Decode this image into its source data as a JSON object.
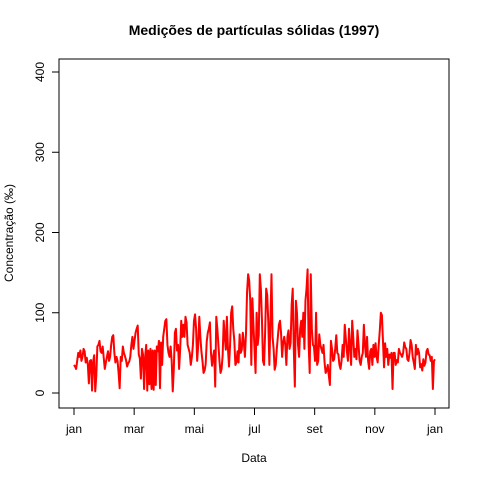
{
  "chart_data": {
    "type": "line",
    "title": "Medições de partículas sólidas (1997)",
    "xlabel": "Data",
    "ylabel": "Concentração (‰)",
    "x_ticks": [
      "jan",
      "mar",
      "mai",
      "jul",
      "set",
      "nov",
      "jan"
    ],
    "y_ticks": [
      0,
      100,
      200,
      300,
      400
    ],
    "ylim": [
      0,
      400
    ],
    "xlim_days": [
      0,
      365
    ],
    "line_color": "#ff0000",
    "series": [
      {
        "values": [
          35,
          33,
          30,
          40,
          50,
          45,
          53,
          40,
          45,
          55,
          52,
          38,
          44,
          36,
          12,
          40,
          41,
          3,
          39,
          47,
          2,
          22,
          58,
          60,
          65,
          52,
          50,
          58,
          44,
          30,
          38,
          45,
          52,
          40,
          45,
          60,
          70,
          72,
          50,
          38,
          45,
          40,
          25,
          6,
          45,
          40,
          58,
          50,
          46,
          41,
          33,
          37,
          39,
          45,
          60,
          70,
          55,
          65,
          75,
          80,
          84,
          48,
          43,
          18,
          55,
          48,
          5,
          45,
          60,
          3,
          53,
          11,
          55,
          5,
          53,
          4,
          53,
          10,
          58,
          52,
          65,
          6,
          63,
          35,
          70,
          80,
          90,
          92,
          60,
          50,
          45,
          58,
          40,
          2,
          30,
          75,
          80,
          53,
          60,
          30,
          55,
          90,
          70,
          85,
          70,
          95,
          88,
          60,
          55,
          50,
          35,
          45,
          60,
          90,
          98,
          80,
          40,
          60,
          95,
          70,
          52,
          40,
          25,
          28,
          36,
          64,
          75,
          80,
          88,
          50,
          34,
          45,
          53,
          8,
          95,
          80,
          60,
          40,
          25,
          30,
          47,
          90,
          70,
          54,
          95,
          55,
          33,
          60,
          100,
          108,
          80,
          65,
          35,
          38,
          52,
          38,
          73,
          50,
          54,
          75,
          62,
          45,
          75,
          126,
          148,
          140,
          115,
          35,
          118,
          85,
          55,
          25,
          100,
          60,
          72,
          148,
          130,
          92,
          40,
          35,
          75,
          130,
          122,
          88,
          35,
          90,
          148,
          70,
          55,
          29,
          35,
          55,
          70,
          85,
          90,
          75,
          45,
          63,
          70,
          60,
          35,
          70,
          78,
          55,
          62,
          110,
          130,
          55,
          8,
          115,
          100,
          60,
          45,
          80,
          90,
          70,
          100,
          55,
          115,
          130,
          154,
          60,
          25,
          148,
          80,
          60,
          58,
          40,
          100,
          35,
          40,
          73,
          60,
          55,
          50,
          60,
          38,
          25,
          28,
          35,
          22,
          10,
          65,
          55,
          40,
          42,
          55,
          72,
          50,
          48,
          35,
          30,
          40,
          60,
          45,
          85,
          68,
          52,
          40,
          80,
          58,
          35,
          90,
          70,
          45,
          55,
          42,
          78,
          60,
          40,
          35,
          45,
          50,
          85,
          60,
          45,
          70,
          40,
          30,
          52,
          55,
          35,
          60,
          45,
          62,
          45,
          38,
          60,
          78,
          100,
          97,
          65,
          32,
          62,
          45,
          55,
          35,
          48,
          44,
          50,
          5,
          50,
          50,
          35,
          41,
          38,
          55,
          50,
          48,
          45,
          50,
          63,
          57,
          55,
          42,
          40,
          50,
          66,
          60,
          45,
          38,
          30,
          60,
          48,
          55,
          50,
          32,
          36,
          28,
          42,
          34,
          38,
          52,
          55,
          48,
          47,
          40,
          45,
          5,
          40,
          42
        ]
      }
    ]
  }
}
